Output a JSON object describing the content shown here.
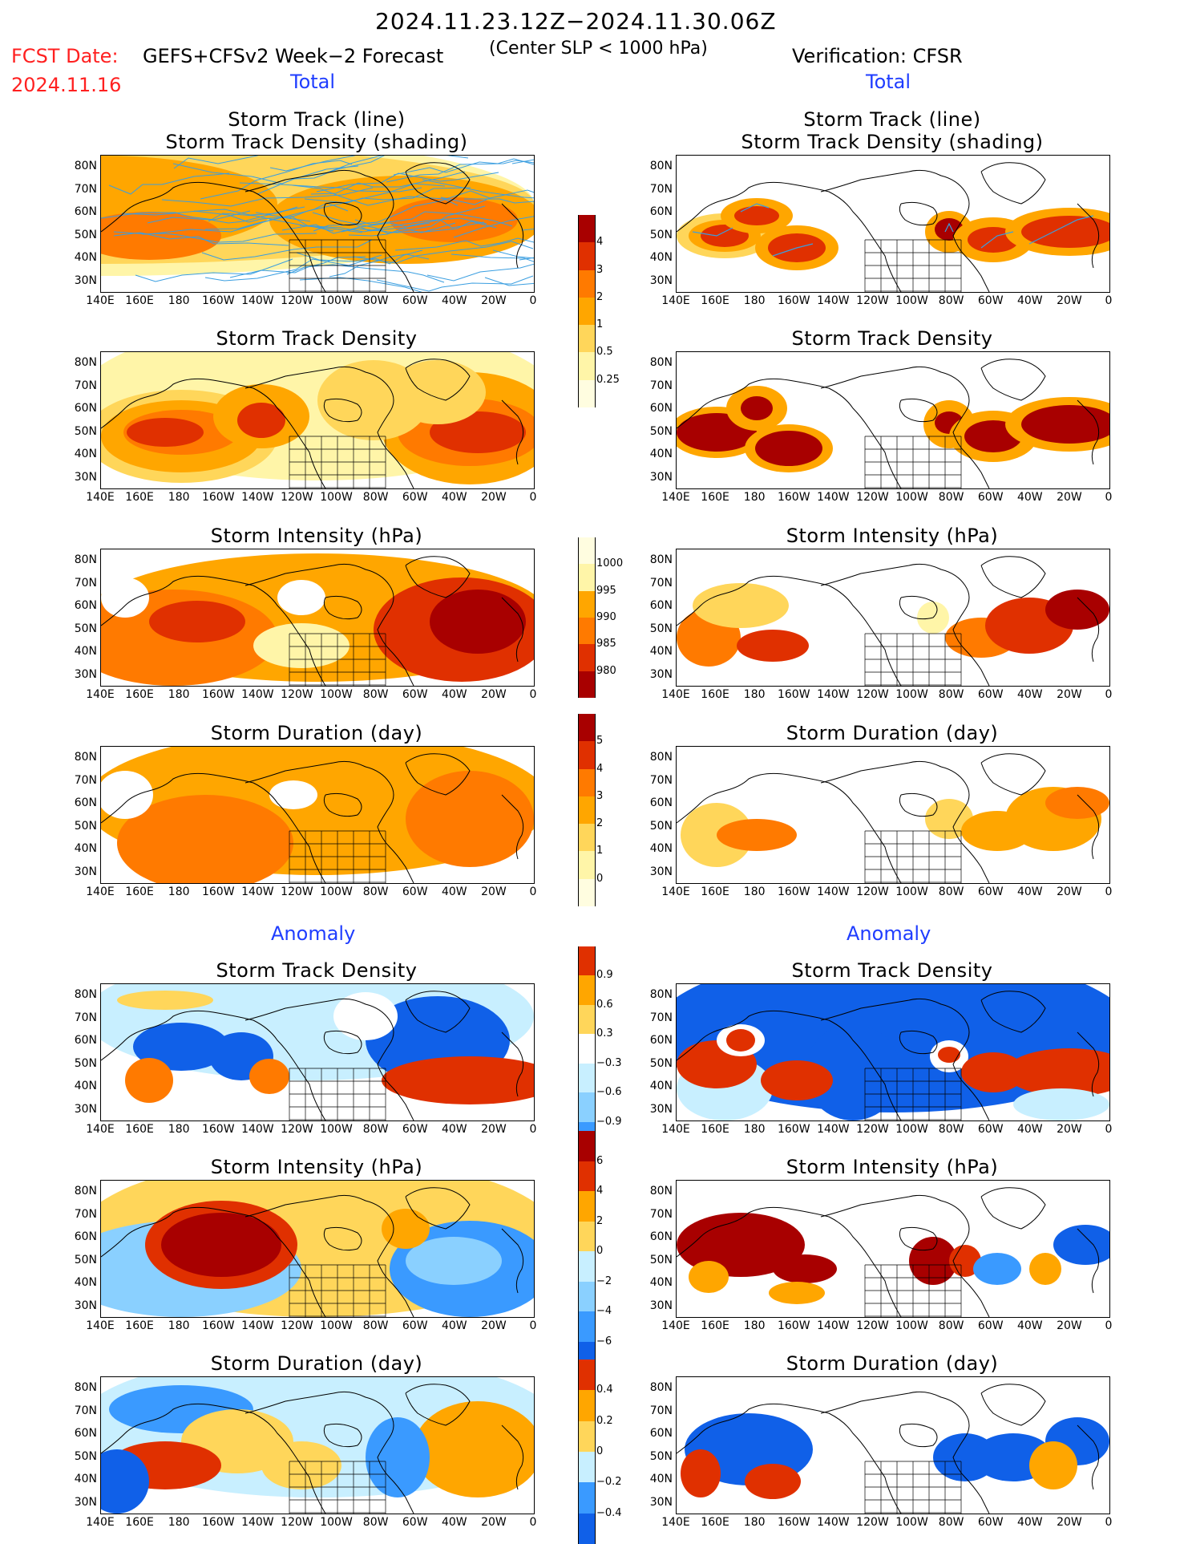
{
  "header": {
    "period": "2024.11.23.12Z−2024.11.30.06Z",
    "fcst_label": "FCST Date:",
    "fcst_date": "2024.11.16",
    "forecast_title": "GEFS+CFSv2 Week−2 Forecast",
    "criterion": "(Center SLP < 1000 hPa)",
    "verification": "Verification: CFSR",
    "total_left": "Total",
    "total_right": "Total",
    "anomaly_left": "Anomaly",
    "anomaly_right": "Anomaly"
  },
  "panel_titles": {
    "track_line": "Storm Track (line)",
    "track_shading": "Storm Track Density (shading)",
    "density": "Storm Track Density",
    "intensity": "Storm Intensity (hPa)",
    "duration": "Storm Duration (day)"
  },
  "axes": {
    "lat_ticks": [
      "80N",
      "70N",
      "60N",
      "50N",
      "40N",
      "30N"
    ],
    "lon_ticks": [
      "140E",
      "160E",
      "180",
      "160W",
      "140W",
      "120W",
      "100W",
      "80W",
      "60W",
      "40W",
      "20W",
      "0"
    ]
  },
  "colorbars": {
    "density": [
      "4",
      "3",
      "2",
      "1",
      "0.5",
      "0.25"
    ],
    "intensity": [
      "1000",
      "995",
      "990",
      "985",
      "980"
    ],
    "duration": [
      "5",
      "4",
      "3",
      "2",
      "1",
      "0"
    ],
    "density_anom": [
      "0.9",
      "0.6",
      "0.3",
      "−0.3",
      "−0.6",
      "−0.9"
    ],
    "intensity_anom": [
      "6",
      "4",
      "2",
      "0",
      "−2",
      "−4",
      "−6"
    ],
    "duration_anom": [
      "0.4",
      "0.2",
      "0",
      "−0.2",
      "−0.4"
    ]
  },
  "colors": {
    "lightyellow": "#fff5a8",
    "yellow": "#ffd65a",
    "orange": "#ffa600",
    "darkorange": "#ff7a00",
    "red": "#e03000",
    "darkred": "#a80000",
    "lightblue": "#c8efff",
    "midblue": "#8ad0ff",
    "blue": "#3a9aff",
    "darkblue": "#1060e8",
    "track": "#3a9ee0"
  }
}
